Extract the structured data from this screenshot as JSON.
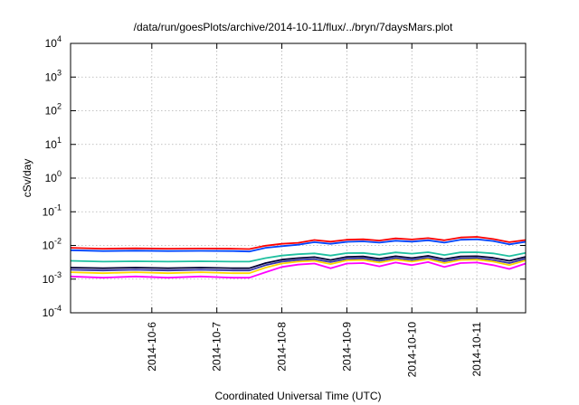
{
  "chart_data": {
    "type": "line",
    "title": "/data/run/goesPlots/archive/2014-10-11/flux/../bryn/7daysMars.plot",
    "xlabel": "Coordinated Universal Time (UTC)",
    "ylabel": "cSv/day",
    "yscale": "log",
    "ylim": [
      0.0001,
      10000
    ],
    "xlim": [
      "2014-10-05 00:00",
      "2014-10-12 00:00"
    ],
    "grid": true,
    "x_tick_labels": [
      "2014-10-6",
      "2014-10-7",
      "2014-10-8",
      "2014-10-9",
      "2014-10-10",
      "2014-10-11"
    ],
    "x_ticks": [
      "2014-10-06 06:00",
      "2014-10-07 06:00",
      "2014-10-08 06:00",
      "2014-10-09 06:00",
      "2014-10-10 06:00",
      "2014-10-11 06:00"
    ],
    "y_ticks": [
      {
        "base": "10",
        "exp": "4",
        "value": 10000
      },
      {
        "base": "10",
        "exp": "3",
        "value": 1000
      },
      {
        "base": "10",
        "exp": "2",
        "value": 100
      },
      {
        "base": "10",
        "exp": "1",
        "value": 10
      },
      {
        "base": "10",
        "exp": "0",
        "value": 1
      },
      {
        "base": "10",
        "exp": "-1",
        "value": 0.1
      },
      {
        "base": "10",
        "exp": "-2",
        "value": 0.01
      },
      {
        "base": "10",
        "exp": "-3",
        "value": 0.001
      },
      {
        "base": "10",
        "exp": "-4",
        "value": 0.0001
      }
    ],
    "x": [
      "2014-10-05 00:00",
      "2014-10-05 12:00",
      "2014-10-06 00:00",
      "2014-10-06 12:00",
      "2014-10-07 00:00",
      "2014-10-07 12:00",
      "2014-10-07 18:00",
      "2014-10-08 00:00",
      "2014-10-08 06:00",
      "2014-10-08 12:00",
      "2014-10-08 18:00",
      "2014-10-09 00:00",
      "2014-10-09 06:00",
      "2014-10-09 12:00",
      "2014-10-09 18:00",
      "2014-10-10 00:00",
      "2014-10-10 06:00",
      "2014-10-10 12:00",
      "2014-10-10 18:00",
      "2014-10-11 00:00",
      "2014-10-11 06:00",
      "2014-10-11 12:00",
      "2014-10-11 18:00",
      "2014-10-12 00:00"
    ],
    "series": [
      {
        "color": "#ff0000",
        "values": [
          0.0085,
          0.008,
          0.0082,
          0.008,
          0.0081,
          0.008,
          0.0078,
          0.0098,
          0.0112,
          0.012,
          0.0145,
          0.013,
          0.0148,
          0.0152,
          0.014,
          0.0162,
          0.015,
          0.0165,
          0.0142,
          0.0172,
          0.018,
          0.0155,
          0.0125,
          0.0145
        ]
      },
      {
        "color": "#0044ff",
        "values": [
          0.0072,
          0.0068,
          0.007,
          0.0068,
          0.0069,
          0.0068,
          0.0066,
          0.0085,
          0.0095,
          0.0105,
          0.0125,
          0.0112,
          0.0128,
          0.0132,
          0.0121,
          0.0138,
          0.013,
          0.0142,
          0.0121,
          0.0148,
          0.0152,
          0.0135,
          0.0108,
          0.0128
        ]
      },
      {
        "color": "#20c0a0",
        "values": [
          0.0035,
          0.0033,
          0.0034,
          0.0033,
          0.0034,
          0.0033,
          0.0033,
          0.0042,
          0.005,
          0.0055,
          0.0058,
          0.005,
          0.0059,
          0.006,
          0.0053,
          0.0062,
          0.0057,
          0.0063,
          0.0052,
          0.0062,
          0.0063,
          0.0058,
          0.0048,
          0.006
        ]
      },
      {
        "color": "#000033",
        "values": [
          0.0022,
          0.0021,
          0.0022,
          0.0021,
          0.0022,
          0.0021,
          0.0021,
          0.003,
          0.0038,
          0.0042,
          0.0045,
          0.0037,
          0.0046,
          0.0047,
          0.004,
          0.0048,
          0.0042,
          0.0049,
          0.0039,
          0.0047,
          0.0048,
          0.0043,
          0.0035,
          0.0046
        ]
      },
      {
        "color": "#3333aa",
        "values": [
          0.0019,
          0.0018,
          0.0019,
          0.0018,
          0.0019,
          0.0018,
          0.0018,
          0.0026,
          0.0033,
          0.0037,
          0.0039,
          0.0032,
          0.004,
          0.0041,
          0.0035,
          0.0042,
          0.0037,
          0.0043,
          0.0034,
          0.0041,
          0.0042,
          0.0037,
          0.003,
          0.004
        ]
      },
      {
        "color": "#ffd700",
        "values": [
          0.0016,
          0.0015,
          0.0016,
          0.0015,
          0.0016,
          0.0015,
          0.0015,
          0.0022,
          0.0029,
          0.0033,
          0.0035,
          0.0028,
          0.0036,
          0.0037,
          0.0031,
          0.0038,
          0.0033,
          0.0039,
          0.003,
          0.0037,
          0.0038,
          0.0033,
          0.0026,
          0.0036
        ]
      },
      {
        "color": "#ff00ff",
        "values": [
          0.0012,
          0.0011,
          0.0012,
          0.0011,
          0.0012,
          0.0011,
          0.0011,
          0.0016,
          0.0023,
          0.0027,
          0.0029,
          0.0021,
          0.0029,
          0.003,
          0.0024,
          0.0031,
          0.0026,
          0.0032,
          0.0023,
          0.003,
          0.0031,
          0.0026,
          0.002,
          0.0029
        ]
      }
    ]
  }
}
